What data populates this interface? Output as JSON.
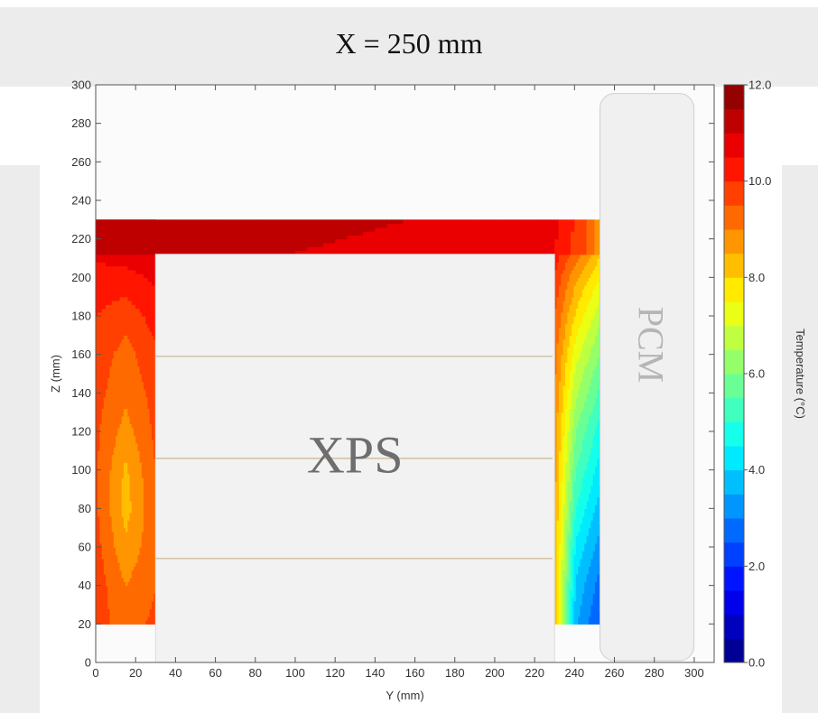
{
  "figure": {
    "title": "X = 250 mm"
  },
  "chart_data": {
    "type": "heatmap",
    "title": "X = 250 mm",
    "xlabel": "Y (mm)",
    "ylabel": "Z (mm)",
    "xlim": [
      0,
      310
    ],
    "ylim": [
      0,
      300
    ],
    "x_ticks": [
      "0",
      "20",
      "40",
      "60",
      "80",
      "100",
      "120",
      "140",
      "160",
      "180",
      "200",
      "220",
      "240",
      "260",
      "280",
      "300"
    ],
    "y_ticks": [
      "0",
      "20",
      "40",
      "60",
      "80",
      "100",
      "120",
      "140",
      "160",
      "180",
      "200",
      "220",
      "240",
      "260",
      "280",
      "300"
    ],
    "colorbar": {
      "label": "Temperature (°C)",
      "range": [
        0,
        12
      ],
      "ticks": [
        "0.0",
        "2.0",
        "4.0",
        "6.0",
        "8.0",
        "10.0",
        "12.0"
      ],
      "colormap": "jet"
    },
    "regions": [
      {
        "label": "XPS",
        "y_range": [
          30,
          230
        ],
        "z_range": [
          0,
          212
        ]
      },
      {
        "label": "PCM",
        "y_range": [
          265,
          300
        ],
        "z_range": [
          0,
          295
        ]
      }
    ],
    "temperature_domain": {
      "y_range": [
        0,
        262
      ],
      "z_range": [
        20,
        230
      ]
    },
    "field": {
      "left_column": {
        "y_range": [
          0,
          30
        ],
        "z_values": [
          20,
          40,
          60,
          80,
          100,
          120,
          140,
          160,
          180,
          200,
          220,
          230
        ],
        "temperature_samples": [
          [
            9.7,
            9.3,
            9.6
          ],
          [
            9.8,
            9.0,
            9.5
          ],
          [
            9.7,
            8.6,
            9.4
          ],
          [
            9.6,
            8.3,
            9.4
          ],
          [
            9.6,
            8.4,
            9.5
          ],
          [
            9.6,
            8.8,
            9.6
          ],
          [
            9.7,
            9.1,
            9.7
          ],
          [
            9.8,
            9.3,
            9.9
          ],
          [
            10.0,
            9.7,
            10.2
          ],
          [
            10.3,
            10.3,
            10.6
          ],
          [
            10.8,
            11.0,
            11.1
          ],
          [
            11.1,
            11.2,
            11.2
          ]
        ]
      },
      "top_band": {
        "z_range": [
          212,
          230
        ],
        "y_values": [
          0,
          30,
          60,
          100,
          140,
          180,
          210,
          230,
          245,
          262
        ],
        "temperature_samples": [
          11.0,
          11.3,
          11.2,
          11.0,
          10.9,
          10.8,
          10.7,
          10.5,
          9.5,
          7.5
        ]
      },
      "right_column": {
        "y_range": [
          230,
          262
        ],
        "z_values": [
          20,
          40,
          60,
          80,
          100,
          120,
          140,
          160,
          180,
          200,
          212
        ],
        "temperature_samples": [
          [
            8.5,
            3.6,
            2.6,
            1.4
          ],
          [
            8.4,
            3.9,
            2.9,
            1.6
          ],
          [
            8.5,
            4.4,
            3.4,
            2.0
          ],
          [
            8.6,
            5.0,
            3.9,
            2.5
          ],
          [
            8.7,
            5.5,
            4.4,
            3.0
          ],
          [
            8.8,
            6.0,
            4.9,
            3.6
          ],
          [
            9.0,
            6.6,
            5.5,
            4.2
          ],
          [
            9.2,
            7.2,
            6.1,
            4.9
          ],
          [
            9.5,
            7.9,
            6.8,
            5.7
          ],
          [
            9.9,
            8.6,
            7.6,
            6.5
          ],
          [
            10.3,
            9.2,
            8.2,
            7.1
          ]
        ]
      }
    },
    "sensor_lines_z": [
      54,
      106,
      159
    ]
  }
}
